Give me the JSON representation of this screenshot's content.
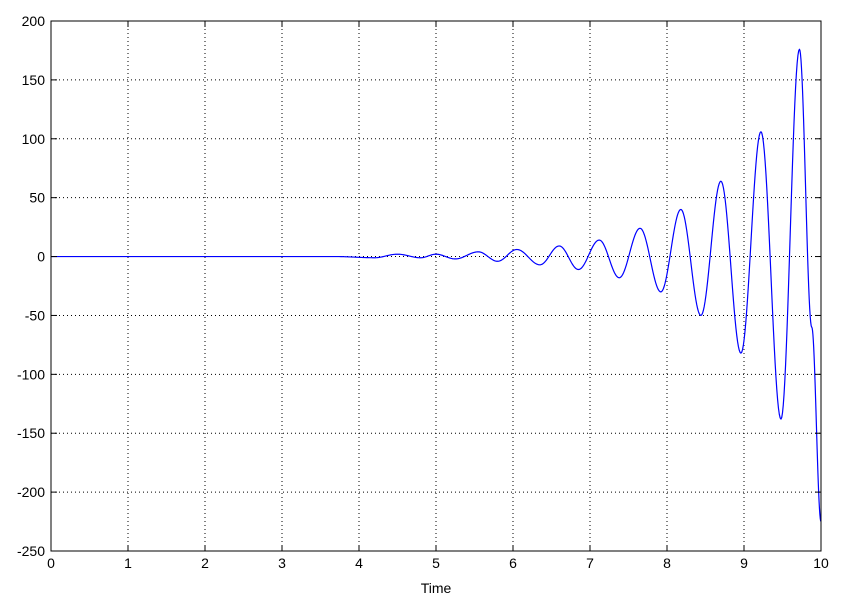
{
  "chart_data": {
    "type": "line",
    "title": "",
    "xlabel": "Time",
    "ylabel": "",
    "xlim": [
      0,
      10
    ],
    "ylim": [
      -250,
      200
    ],
    "xticks": [
      0,
      1,
      2,
      3,
      4,
      5,
      6,
      7,
      8,
      9,
      10
    ],
    "yticks": [
      200,
      150,
      100,
      50,
      0,
      -50,
      -100,
      -150,
      -200,
      -250
    ],
    "grid": true,
    "grid_style": "dotted",
    "line_color": "#0000ff",
    "axis_color": "#000000",
    "series": [
      {
        "x": [
          0,
          3.7,
          4.2,
          4.5,
          4.8,
          5.0,
          5.25,
          5.55,
          5.8,
          6.05,
          6.35,
          6.6,
          6.85,
          7.12,
          7.38,
          7.65,
          7.92,
          8.18,
          8.44,
          8.7,
          8.96,
          9.22,
          9.48,
          9.72,
          9.88,
          10.0
        ],
        "y": [
          0,
          0,
          -1,
          2,
          -1,
          2,
          -2,
          4,
          -4,
          6,
          -7,
          9,
          -11,
          14,
          -18,
          24,
          -30,
          40,
          -50,
          64,
          -82,
          106,
          -138,
          176,
          -60,
          -225
        ]
      }
    ]
  }
}
